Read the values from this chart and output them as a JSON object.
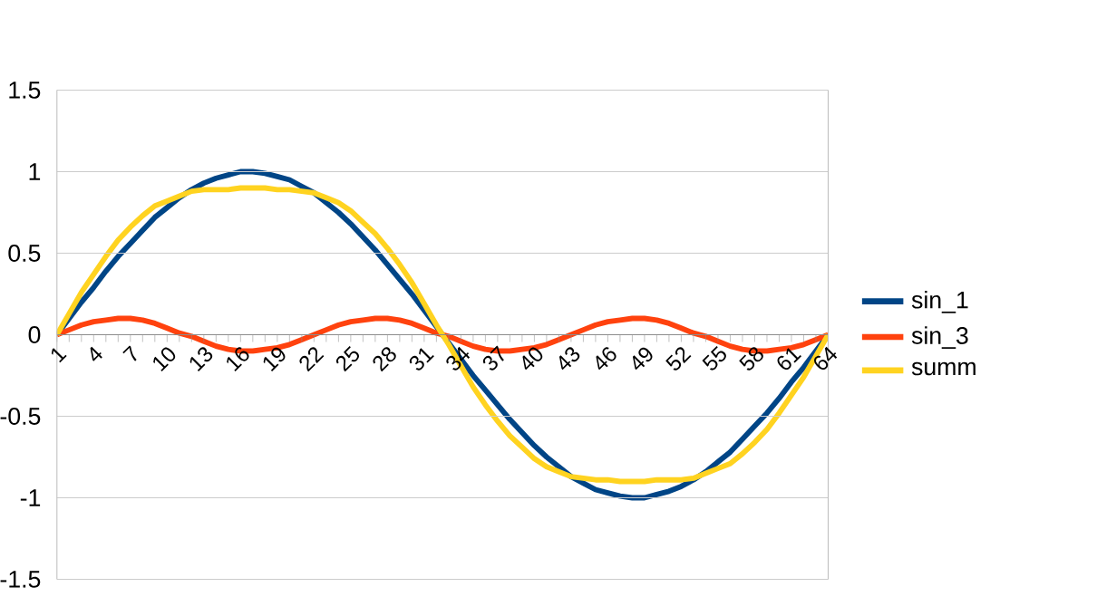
{
  "chart_data": {
    "type": "line",
    "categories": [
      "1",
      null,
      null,
      "4",
      null,
      null,
      "7",
      null,
      null,
      "10",
      null,
      null,
      "13",
      null,
      null,
      "16",
      null,
      null,
      "19",
      null,
      null,
      "22",
      null,
      null,
      "25",
      null,
      null,
      "28",
      null,
      null,
      "31",
      null,
      null,
      "34",
      null,
      null,
      "37",
      null,
      null,
      "40",
      null,
      null,
      "43",
      null,
      null,
      "46",
      null,
      null,
      "49",
      null,
      null,
      "52",
      null,
      null,
      "55",
      null,
      null,
      "58",
      null,
      null,
      "61",
      null,
      null,
      "64"
    ],
    "series": [
      {
        "name": "sin_1",
        "color": "#004586",
        "values": [
          0,
          0.1,
          0.2,
          0.29,
          0.39,
          0.48,
          0.56,
          0.64,
          0.72,
          0.78,
          0.84,
          0.89,
          0.93,
          0.96,
          0.98,
          1,
          1,
          0.99,
          0.97,
          0.95,
          0.91,
          0.87,
          0.81,
          0.75,
          0.68,
          0.6,
          0.52,
          0.43,
          0.34,
          0.25,
          0.15,
          0.05,
          -0.05,
          -0.15,
          -0.25,
          -0.34,
          -0.43,
          -0.52,
          -0.6,
          -0.68,
          -0.75,
          -0.81,
          -0.87,
          -0.91,
          -0.95,
          -0.97,
          -0.99,
          -1,
          -1,
          -0.98,
          -0.96,
          -0.93,
          -0.89,
          -0.84,
          -0.78,
          -0.72,
          -0.64,
          -0.56,
          -0.48,
          -0.39,
          -0.29,
          -0.2,
          -0.1,
          0
        ]
      },
      {
        "name": "sin_3",
        "color": "#ff420e",
        "values": [
          0,
          0.03,
          0.06,
          0.08,
          0.09,
          0.1,
          0.1,
          0.09,
          0.07,
          0.04,
          0.01,
          -0.01,
          -0.04,
          -0.07,
          -0.09,
          -0.1,
          -0.1,
          -0.09,
          -0.08,
          -0.06,
          -0.03,
          0,
          0.03,
          0.06,
          0.08,
          0.09,
          0.1,
          0.1,
          0.09,
          0.07,
          0.04,
          0.01,
          -0.01,
          -0.04,
          -0.07,
          -0.09,
          -0.1,
          -0.1,
          -0.09,
          -0.08,
          -0.06,
          -0.03,
          0,
          0.03,
          0.06,
          0.08,
          0.09,
          0.1,
          0.1,
          0.09,
          0.07,
          0.04,
          0.01,
          -0.01,
          -0.04,
          -0.07,
          -0.09,
          -0.1,
          -0.1,
          -0.09,
          -0.08,
          -0.06,
          -0.03,
          0
        ]
      },
      {
        "name": "summ",
        "color": "#ffd320",
        "values": [
          0,
          0.13,
          0.26,
          0.37,
          0.48,
          0.58,
          0.66,
          0.73,
          0.79,
          0.82,
          0.85,
          0.88,
          0.89,
          0.89,
          0.89,
          0.9,
          0.9,
          0.9,
          0.89,
          0.89,
          0.88,
          0.87,
          0.84,
          0.81,
          0.76,
          0.69,
          0.62,
          0.53,
          0.43,
          0.32,
          0.19,
          0.06,
          -0.06,
          -0.19,
          -0.32,
          -0.43,
          -0.53,
          -0.62,
          -0.69,
          -0.76,
          -0.81,
          -0.84,
          -0.87,
          -0.88,
          -0.89,
          -0.89,
          -0.9,
          -0.9,
          -0.9,
          -0.89,
          -0.89,
          -0.89,
          -0.88,
          -0.85,
          -0.82,
          -0.79,
          -0.73,
          -0.66,
          -0.58,
          -0.48,
          -0.37,
          -0.26,
          -0.13,
          0
        ]
      }
    ],
    "ylim": [
      -1.5,
      1.5
    ],
    "yticks": [
      -1.5,
      -1,
      -0.5,
      0,
      0.5,
      1,
      1.5
    ],
    "grid": "y",
    "legend": "right",
    "marker": "none",
    "line_style": "solid"
  }
}
